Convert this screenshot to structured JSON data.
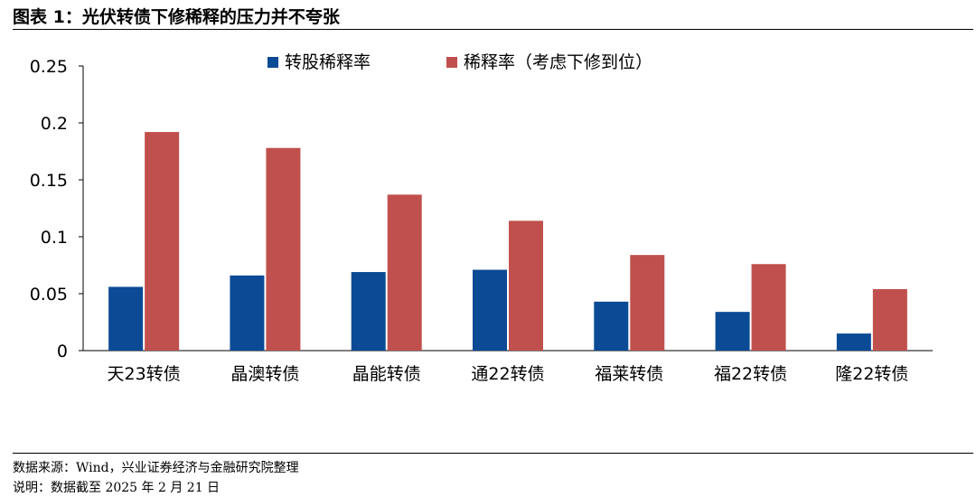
{
  "header": {
    "title": "图表 1：光伏转债下修稀释的压力并不夸张"
  },
  "footer": {
    "source": "数据来源：Wind，兴业证券经济与金融研究院整理",
    "note": "说明：数据截至 2025 年 2 月 21 日"
  },
  "chart_data": {
    "type": "bar",
    "categories": [
      "天23转债",
      "晶澳转债",
      "晶能转债",
      "通22转债",
      "福莱转债",
      "福22转债",
      "隆22转债"
    ],
    "series": [
      {
        "name": "转股稀释率",
        "color": "#0b4a94",
        "values": [
          0.056,
          0.066,
          0.069,
          0.071,
          0.043,
          0.034,
          0.015
        ]
      },
      {
        "name": "稀释率（考虑下修到位）",
        "color": "#c0504d",
        "values": [
          0.192,
          0.178,
          0.137,
          0.114,
          0.084,
          0.076,
          0.054
        ]
      }
    ],
    "ylim": [
      0,
      0.25
    ],
    "yticks": [
      "0",
      "0.05",
      "0.1",
      "0.15",
      "0.2",
      "0.25"
    ],
    "legend_position": "top-center",
    "grid": false
  }
}
